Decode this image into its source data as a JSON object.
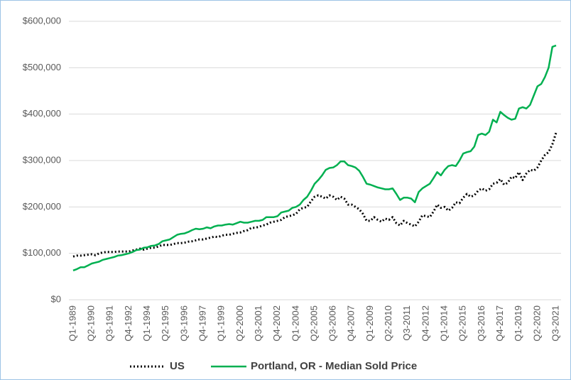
{
  "chart_data": {
    "type": "line",
    "categories": [
      "Q1-1989",
      null,
      null,
      null,
      null,
      "Q2-1990",
      null,
      null,
      null,
      null,
      "Q3-1991",
      null,
      null,
      null,
      null,
      "Q4-1992",
      null,
      null,
      null,
      null,
      "Q1-1994",
      null,
      null,
      null,
      null,
      "Q2-1995",
      null,
      null,
      null,
      null,
      "Q3-1996",
      null,
      null,
      null,
      null,
      "Q4-1997",
      null,
      null,
      null,
      null,
      "Q1-1999",
      null,
      null,
      null,
      null,
      "Q2-2000",
      null,
      null,
      null,
      null,
      "Q3-2001",
      null,
      null,
      null,
      null,
      "Q4-2002",
      null,
      null,
      null,
      null,
      "Q1-2004",
      null,
      null,
      null,
      null,
      "Q2-2005",
      null,
      null,
      null,
      null,
      "Q3-2006",
      null,
      null,
      null,
      null,
      "Q4-2007",
      null,
      null,
      null,
      null,
      "Q1-2009",
      null,
      null,
      null,
      null,
      "Q2-2010",
      null,
      null,
      null,
      null,
      "Q3-2011",
      null,
      null,
      null,
      null,
      "Q4-2012",
      null,
      null,
      null,
      null,
      "Q1-2014",
      null,
      null,
      null,
      null,
      "Q2-2015",
      null,
      null,
      null,
      null,
      "Q3-2016",
      null,
      null,
      null,
      null,
      "Q4-2017",
      null,
      null,
      null,
      null,
      "Q1-2019",
      null,
      null,
      null,
      null,
      "Q2-2020",
      null,
      null,
      null,
      null,
      "Q3-2021"
    ],
    "series": [
      {
        "name": "US",
        "color": "#000000",
        "dash": "2,3",
        "values": [
          93000,
          95000,
          95000,
          96000,
          97000,
          98000,
          96000,
          100000,
          102000,
          103000,
          103000,
          103000,
          104000,
          104000,
          104000,
          104000,
          106000,
          108000,
          110000,
          108000,
          110000,
          112000,
          112000,
          115000,
          118000,
          118000,
          118000,
          120000,
          122000,
          122000,
          123000,
          125000,
          126000,
          128000,
          130000,
          130000,
          132000,
          134000,
          136000,
          135000,
          138000,
          140000,
          140000,
          142000,
          144000,
          145000,
          148000,
          150000,
          155000,
          155000,
          157000,
          160000,
          162000,
          166000,
          168000,
          170000,
          172000,
          178000,
          180000,
          182000,
          185000,
          195000,
          198000,
          200000,
          212000,
          222000,
          225000,
          222000,
          218000,
          225000,
          222000,
          215000,
          222000,
          218000,
          205000,
          205000,
          200000,
          195000,
          185000,
          170000,
          170000,
          178000,
          172000,
          168000,
          175000,
          172000,
          178000,
          165000,
          160000,
          170000,
          165000,
          162000,
          158000,
          168000,
          182000,
          180000,
          178000,
          190000,
          205000,
          198000,
          200000,
          192000,
          198000,
          210000,
          208000,
          220000,
          228000,
          222000,
          225000,
          235000,
          240000,
          235000,
          238000,
          250000,
          252000,
          260000,
          248000,
          252000,
          265000,
          262000,
          275000,
          258000,
          272000,
          280000,
          278000,
          285000,
          300000,
          312000,
          318000,
          335000,
          360000
        ]
      },
      {
        "name": "Portland, OR - Median Sold Price",
        "color": "#00b050",
        "values": [
          63000,
          66000,
          70000,
          70000,
          74000,
          78000,
          80000,
          82000,
          86000,
          88000,
          90000,
          92000,
          95000,
          96000,
          98000,
          100000,
          103000,
          107000,
          108000,
          112000,
          113000,
          116000,
          117000,
          120000,
          126000,
          128000,
          130000,
          135000,
          140000,
          142000,
          143000,
          146000,
          150000,
          153000,
          152000,
          153000,
          156000,
          154000,
          158000,
          160000,
          160000,
          162000,
          163000,
          162000,
          165000,
          168000,
          166000,
          166000,
          168000,
          170000,
          170000,
          172000,
          178000,
          178000,
          178000,
          180000,
          188000,
          190000,
          192000,
          198000,
          200000,
          205000,
          215000,
          222000,
          235000,
          250000,
          258000,
          268000,
          280000,
          284000,
          285000,
          290000,
          298000,
          298000,
          290000,
          288000,
          285000,
          278000,
          265000,
          250000,
          248000,
          245000,
          242000,
          240000,
          238000,
          238000,
          240000,
          228000,
          215000,
          220000,
          220000,
          218000,
          210000,
          232000,
          240000,
          245000,
          250000,
          262000,
          275000,
          268000,
          280000,
          288000,
          290000,
          288000,
          300000,
          315000,
          318000,
          320000,
          330000,
          355000,
          358000,
          355000,
          362000,
          388000,
          382000,
          405000,
          398000,
          392000,
          388000,
          390000,
          412000,
          415000,
          412000,
          420000,
          440000,
          460000,
          465000,
          480000,
          500000,
          545000,
          548000
        ]
      }
    ],
    "ylim": [
      0,
      600000
    ],
    "yticks": [
      {
        "value": 0,
        "label": "$0"
      },
      {
        "value": 100000,
        "label": "$100,000"
      },
      {
        "value": 200000,
        "label": "$200,000"
      },
      {
        "value": 300000,
        "label": "$300,000"
      },
      {
        "value": 400000,
        "label": "$400,000"
      },
      {
        "value": 500000,
        "label": "$500,000"
      },
      {
        "value": 600000,
        "label": "$600,000"
      }
    ],
    "grid": true,
    "legend": "bottom"
  }
}
